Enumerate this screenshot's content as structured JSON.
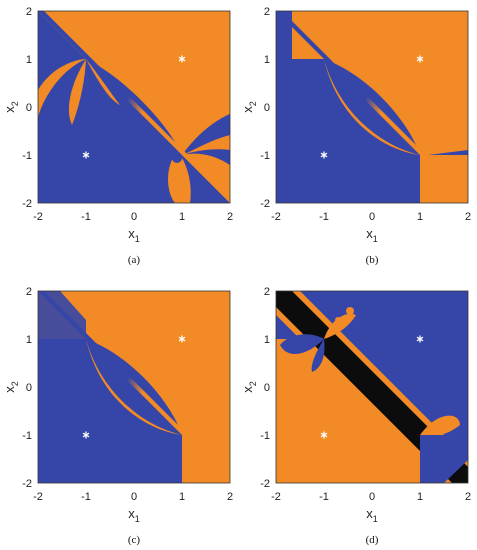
{
  "colors": {
    "orange": "#f28a26",
    "blue": "#3546a8",
    "black": "#0c0c0c",
    "star": "#ffffff"
  },
  "chart_data": [
    {
      "caption": "(a)",
      "type": "heatmap",
      "xlabel": "x",
      "xlabel_sub": "1",
      "ylabel": "x",
      "ylabel_sub": "2",
      "xlim": [
        -2,
        2
      ],
      "ylim": [
        -2,
        2
      ],
      "xticks": [
        "-2",
        "-1",
        "0",
        "1",
        "2"
      ],
      "yticks": [
        "2",
        "1",
        "0",
        "-1",
        "-2"
      ],
      "markers": [
        {
          "x": 1,
          "y": 1,
          "symbol": "*"
        },
        {
          "x": -1,
          "y": -1,
          "symbol": "*"
        }
      ],
      "regions": [
        "orange",
        "blue"
      ]
    },
    {
      "caption": "(b)",
      "type": "heatmap",
      "xlabel": "x",
      "xlabel_sub": "1",
      "ylabel": "x",
      "ylabel_sub": "2",
      "xlim": [
        -2,
        2
      ],
      "ylim": [
        -2,
        2
      ],
      "xticks": [
        "-2",
        "-1",
        "0",
        "1",
        "2"
      ],
      "yticks": [
        "2",
        "1",
        "0",
        "-1",
        "-2"
      ],
      "markers": [
        {
          "x": 1,
          "y": 1,
          "symbol": "*"
        },
        {
          "x": -1,
          "y": -1,
          "symbol": "*"
        }
      ],
      "regions": [
        "orange",
        "blue"
      ]
    },
    {
      "caption": "(c)",
      "type": "heatmap",
      "xlabel": "x",
      "xlabel_sub": "1",
      "ylabel": "x",
      "ylabel_sub": "2",
      "xlim": [
        -2,
        2
      ],
      "ylim": [
        -2,
        2
      ],
      "xticks": [
        "-2",
        "-1",
        "0",
        "1",
        "2"
      ],
      "yticks": [
        "2",
        "1",
        "0",
        "-1",
        "-2"
      ],
      "markers": [
        {
          "x": 1,
          "y": 1,
          "symbol": "*"
        },
        {
          "x": -1,
          "y": -1,
          "symbol": "*"
        }
      ],
      "regions": [
        "orange",
        "blue"
      ]
    },
    {
      "caption": "(d)",
      "type": "heatmap",
      "xlabel": "x",
      "xlabel_sub": "1",
      "ylabel": "x",
      "ylabel_sub": "2",
      "xlim": [
        -2,
        2
      ],
      "ylim": [
        -2,
        2
      ],
      "xticks": [
        "-2",
        "-1",
        "0",
        "1",
        "2"
      ],
      "yticks": [
        "2",
        "1",
        "0",
        "-1",
        "-2"
      ],
      "markers": [
        {
          "x": 1,
          "y": 1,
          "symbol": "*"
        },
        {
          "x": -1,
          "y": -1,
          "symbol": "*"
        }
      ],
      "regions": [
        "blue",
        "orange",
        "black"
      ]
    }
  ]
}
